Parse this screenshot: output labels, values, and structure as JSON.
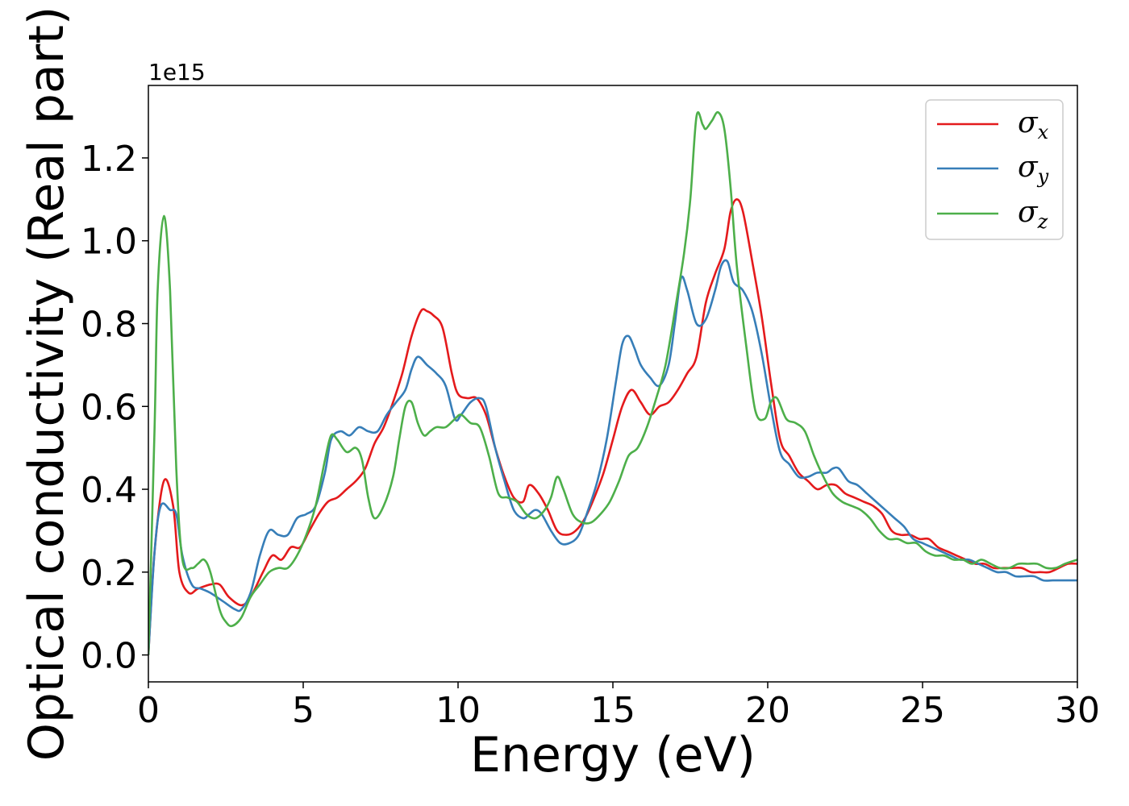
{
  "chart_data": {
    "type": "line",
    "xlabel": "Energy (eV)",
    "ylabel": "Optical conductivity (Real part)",
    "y_offset_label": "1e15",
    "xlim": [
      0,
      30
    ],
    "ylim": [
      -0.065,
      1.375
    ],
    "xticks": [
      0,
      5,
      10,
      15,
      20,
      25,
      30
    ],
    "xtick_labels": [
      "0",
      "5",
      "10",
      "15",
      "20",
      "25",
      "30"
    ],
    "yticks": [
      0.0,
      0.2,
      0.4,
      0.6,
      0.8,
      1.0,
      1.2
    ],
    "ytick_labels": [
      "0.0",
      "0.2",
      "0.4",
      "0.6",
      "0.8",
      "1.0",
      "1.2"
    ],
    "grid": false,
    "legend_position": "top-right",
    "series": [
      {
        "name": "σx",
        "symbol": "σ",
        "subscript": "x",
        "color": "#e41a1c",
        "x": [
          0,
          0.2,
          0.5,
          0.8,
          1.0,
          1.3,
          1.6,
          2.0,
          2.3,
          2.6,
          3.0,
          3.3,
          3.7,
          4.0,
          4.3,
          4.6,
          4.9,
          5.2,
          5.5,
          5.8,
          6.1,
          6.4,
          6.7,
          7.0,
          7.3,
          7.6,
          7.9,
          8.2,
          8.5,
          8.8,
          9.0,
          9.2,
          9.5,
          9.8,
          10.0,
          10.3,
          10.6,
          10.9,
          11.2,
          11.5,
          11.8,
          12.1,
          12.3,
          12.6,
          12.9,
          13.2,
          13.5,
          13.8,
          14.1,
          14.4,
          14.7,
          15.0,
          15.3,
          15.6,
          15.9,
          16.2,
          16.5,
          16.8,
          17.1,
          17.4,
          17.7,
          18.0,
          18.3,
          18.6,
          18.8,
          19.0,
          19.2,
          19.5,
          19.8,
          20.1,
          20.4,
          20.7,
          21.0,
          21.3,
          21.6,
          21.9,
          22.2,
          22.5,
          22.8,
          23.1,
          23.4,
          23.7,
          24.0,
          24.3,
          24.6,
          24.9,
          25.2,
          25.5,
          25.8,
          26.1,
          26.4,
          26.7,
          27.0,
          27.3,
          27.6,
          27.9,
          28.2,
          28.5,
          28.8,
          29.1,
          29.4,
          29.7,
          30.0
        ],
        "values": [
          0.0,
          0.25,
          0.42,
          0.36,
          0.2,
          0.15,
          0.16,
          0.17,
          0.17,
          0.14,
          0.12,
          0.14,
          0.2,
          0.24,
          0.23,
          0.26,
          0.26,
          0.3,
          0.34,
          0.37,
          0.38,
          0.4,
          0.42,
          0.45,
          0.51,
          0.55,
          0.61,
          0.68,
          0.77,
          0.83,
          0.83,
          0.82,
          0.79,
          0.68,
          0.63,
          0.62,
          0.62,
          0.58,
          0.5,
          0.43,
          0.38,
          0.37,
          0.41,
          0.39,
          0.35,
          0.3,
          0.29,
          0.3,
          0.33,
          0.38,
          0.44,
          0.52,
          0.6,
          0.64,
          0.61,
          0.58,
          0.6,
          0.61,
          0.64,
          0.68,
          0.72,
          0.85,
          0.92,
          0.98,
          1.07,
          1.1,
          1.07,
          0.95,
          0.82,
          0.66,
          0.52,
          0.48,
          0.44,
          0.42,
          0.4,
          0.41,
          0.41,
          0.39,
          0.38,
          0.37,
          0.36,
          0.34,
          0.3,
          0.29,
          0.29,
          0.28,
          0.28,
          0.26,
          0.25,
          0.24,
          0.23,
          0.22,
          0.22,
          0.21,
          0.21,
          0.21,
          0.21,
          0.2,
          0.2,
          0.2,
          0.21,
          0.22,
          0.22
        ]
      },
      {
        "name": "σy",
        "symbol": "σ",
        "subscript": "y",
        "color": "#377eb8",
        "x": [
          0,
          0.2,
          0.4,
          0.7,
          0.9,
          1.1,
          1.4,
          1.7,
          2.0,
          2.4,
          2.8,
          3.0,
          3.3,
          3.6,
          3.9,
          4.2,
          4.5,
          4.8,
          5.1,
          5.4,
          5.7,
          5.9,
          6.2,
          6.5,
          6.8,
          7.1,
          7.4,
          7.7,
          8.0,
          8.3,
          8.5,
          8.7,
          9.0,
          9.3,
          9.6,
          9.9,
          10.1,
          10.4,
          10.7,
          10.9,
          11.2,
          11.5,
          11.8,
          12.1,
          12.3,
          12.5,
          12.7,
          13.0,
          13.3,
          13.6,
          13.9,
          14.2,
          14.5,
          14.8,
          15.1,
          15.3,
          15.5,
          15.7,
          15.9,
          16.2,
          16.5,
          16.8,
          17.0,
          17.2,
          17.4,
          17.7,
          18.0,
          18.3,
          18.5,
          18.7,
          18.9,
          19.2,
          19.5,
          19.8,
          20.1,
          20.4,
          20.7,
          21.0,
          21.3,
          21.6,
          21.9,
          22.1,
          22.3,
          22.6,
          22.9,
          23.2,
          23.5,
          23.8,
          24.1,
          24.4,
          24.7,
          25.0,
          25.3,
          25.6,
          25.9,
          26.2,
          26.5,
          26.8,
          27.1,
          27.4,
          27.7,
          28.0,
          28.3,
          28.6,
          28.9,
          29.2,
          29.5,
          29.8,
          30.0
        ],
        "values": [
          0.0,
          0.25,
          0.36,
          0.35,
          0.34,
          0.24,
          0.17,
          0.16,
          0.15,
          0.13,
          0.11,
          0.11,
          0.15,
          0.24,
          0.3,
          0.29,
          0.29,
          0.33,
          0.34,
          0.36,
          0.44,
          0.52,
          0.54,
          0.53,
          0.55,
          0.54,
          0.54,
          0.58,
          0.61,
          0.64,
          0.69,
          0.72,
          0.7,
          0.68,
          0.65,
          0.57,
          0.58,
          0.61,
          0.62,
          0.6,
          0.5,
          0.42,
          0.35,
          0.33,
          0.34,
          0.35,
          0.34,
          0.3,
          0.27,
          0.27,
          0.29,
          0.35,
          0.42,
          0.52,
          0.66,
          0.75,
          0.77,
          0.74,
          0.7,
          0.67,
          0.65,
          0.7,
          0.8,
          0.91,
          0.88,
          0.8,
          0.81,
          0.88,
          0.94,
          0.95,
          0.9,
          0.88,
          0.83,
          0.73,
          0.6,
          0.49,
          0.46,
          0.43,
          0.43,
          0.44,
          0.44,
          0.45,
          0.45,
          0.42,
          0.41,
          0.39,
          0.37,
          0.35,
          0.33,
          0.31,
          0.28,
          0.27,
          0.26,
          0.25,
          0.24,
          0.23,
          0.23,
          0.22,
          0.21,
          0.2,
          0.2,
          0.19,
          0.19,
          0.19,
          0.18,
          0.18,
          0.18,
          0.18,
          0.18
        ]
      },
      {
        "name": "σz",
        "symbol": "σ",
        "subscript": "z",
        "color": "#4daf4a",
        "x": [
          0,
          0.2,
          0.3,
          0.5,
          0.7,
          0.9,
          1.1,
          1.4,
          1.6,
          1.8,
          2.0,
          2.3,
          2.5,
          2.7,
          3.0,
          3.3,
          3.6,
          3.9,
          4.2,
          4.5,
          4.8,
          5.1,
          5.4,
          5.7,
          5.9,
          6.1,
          6.4,
          6.7,
          6.9,
          7.1,
          7.3,
          7.6,
          7.9,
          8.1,
          8.3,
          8.5,
          8.7,
          8.9,
          9.1,
          9.3,
          9.6,
          9.9,
          10.1,
          10.4,
          10.7,
          11.0,
          11.3,
          11.6,
          11.9,
          12.2,
          12.5,
          12.8,
          13.0,
          13.2,
          13.4,
          13.7,
          14.0,
          14.3,
          14.6,
          14.9,
          15.2,
          15.5,
          15.8,
          16.1,
          16.4,
          16.7,
          17.0,
          17.3,
          17.5,
          17.7,
          17.9,
          18.0,
          18.2,
          18.4,
          18.6,
          18.8,
          19.0,
          19.3,
          19.6,
          19.9,
          20.1,
          20.3,
          20.6,
          20.9,
          21.2,
          21.5,
          21.8,
          22.1,
          22.4,
          22.7,
          23.0,
          23.3,
          23.6,
          23.9,
          24.2,
          24.5,
          24.8,
          25.1,
          25.4,
          25.7,
          26.0,
          26.3,
          26.6,
          26.9,
          27.2,
          27.5,
          27.8,
          28.1,
          28.4,
          28.7,
          29.0,
          29.3,
          29.6,
          30.0
        ],
        "values": [
          0.0,
          0.55,
          0.88,
          1.06,
          0.88,
          0.45,
          0.23,
          0.21,
          0.22,
          0.23,
          0.2,
          0.11,
          0.08,
          0.07,
          0.09,
          0.14,
          0.17,
          0.2,
          0.21,
          0.21,
          0.24,
          0.29,
          0.36,
          0.47,
          0.53,
          0.52,
          0.49,
          0.5,
          0.47,
          0.38,
          0.33,
          0.36,
          0.43,
          0.52,
          0.6,
          0.61,
          0.56,
          0.53,
          0.54,
          0.55,
          0.55,
          0.57,
          0.58,
          0.56,
          0.55,
          0.48,
          0.39,
          0.38,
          0.37,
          0.34,
          0.33,
          0.35,
          0.38,
          0.43,
          0.4,
          0.34,
          0.32,
          0.32,
          0.34,
          0.37,
          0.42,
          0.48,
          0.5,
          0.55,
          0.62,
          0.7,
          0.83,
          0.97,
          1.1,
          1.3,
          1.28,
          1.27,
          1.29,
          1.31,
          1.27,
          1.13,
          0.94,
          0.75,
          0.59,
          0.57,
          0.61,
          0.62,
          0.57,
          0.56,
          0.54,
          0.48,
          0.43,
          0.39,
          0.37,
          0.36,
          0.35,
          0.33,
          0.3,
          0.28,
          0.28,
          0.27,
          0.27,
          0.25,
          0.24,
          0.24,
          0.23,
          0.23,
          0.22,
          0.23,
          0.22,
          0.21,
          0.21,
          0.22,
          0.22,
          0.22,
          0.21,
          0.21,
          0.22,
          0.23
        ]
      }
    ]
  }
}
